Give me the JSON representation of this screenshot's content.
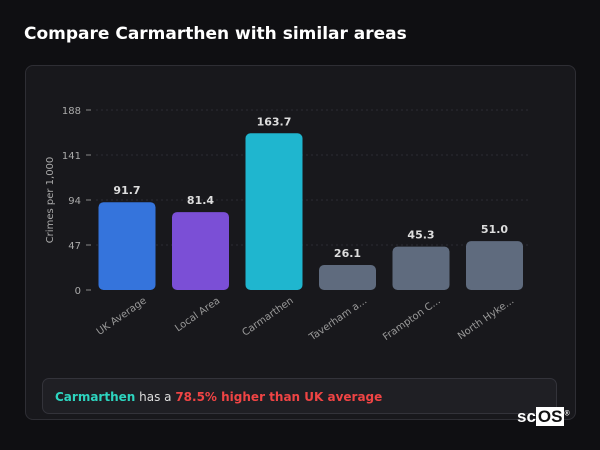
{
  "title": "Compare Carmarthen with similar areas",
  "chart_data": {
    "type": "bar",
    "ylabel": "Crimes per 1,000",
    "xlabel": "",
    "ylim": [
      0,
      188
    ],
    "yticks": [
      0,
      47,
      94,
      141,
      188
    ],
    "grid": true,
    "categories": [
      "UK Average",
      "Local Area",
      "Carmarthen",
      "Taverham a...",
      "Frampton C...",
      "North Hyke..."
    ],
    "values": [
      91.7,
      81.4,
      163.7,
      26.1,
      45.3,
      51.0
    ],
    "data_labels": [
      "91.7",
      "81.4",
      "163.7",
      "26.1",
      "45.3",
      "51.0"
    ],
    "colors": [
      "#3574dc",
      "#7b4fd6",
      "#1fb6cf",
      "#5f6b7e",
      "#5f6b7e",
      "#5f6b7e"
    ]
  },
  "summary": {
    "area": "Carmarthen",
    "middle": " has a ",
    "highlight": "78.5% higher than UK average"
  },
  "logo": {
    "text1": "sc",
    "text2": "OS",
    "mark": "®"
  }
}
